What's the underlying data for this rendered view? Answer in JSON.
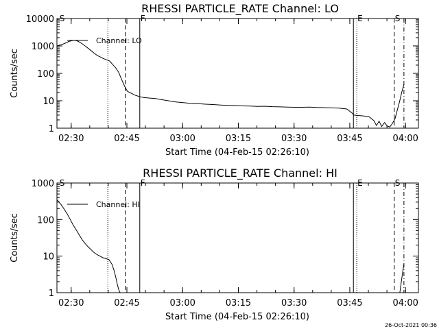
{
  "footer_timestamp": "26-Oct-2021 00:36",
  "chart_data": [
    {
      "type": "line",
      "title": "RHESSI PARTICLE_RATE Channel: LO",
      "xlabel": "Start Time (04-Feb-15 02:26:10)",
      "ylabel": "Counts/sec",
      "yscale": "log",
      "ylim": [
        1,
        10000
      ],
      "yticks": [
        1,
        10,
        100,
        1000,
        10000
      ],
      "ytick_labels": [
        "1",
        "10",
        "100",
        "1000",
        "10000"
      ],
      "xunit": "minutes since 02:26:10",
      "xlim": [
        0,
        97.3
      ],
      "xticks": [
        3.83,
        18.83,
        33.83,
        48.83,
        63.83,
        78.83,
        93.83
      ],
      "xtick_labels": [
        "02:30",
        "02:45",
        "03:00",
        "03:15",
        "03:30",
        "03:45",
        "04:00"
      ],
      "grid": false,
      "legend": {
        "label": "Channel: LO",
        "placement": "top-left"
      },
      "markers": [
        {
          "label": "S",
          "x": 0.5,
          "linestyle": "none"
        },
        {
          "label": "",
          "x": 13.7,
          "linestyle": "dotted"
        },
        {
          "label": "",
          "x": 18.4,
          "linestyle": "dashed"
        },
        {
          "label": "F",
          "x": 22.3,
          "linestyle": "solid"
        },
        {
          "label": "",
          "x": 79.8,
          "linestyle": "solid"
        },
        {
          "label": "E",
          "x": 80.7,
          "linestyle": "dotted"
        },
        {
          "label": "S",
          "x": 90.8,
          "linestyle": "dashed"
        },
        {
          "label": "",
          "x": 93.4,
          "linestyle": "dashdot"
        }
      ],
      "series": [
        {
          "x": [
            0,
            0.5,
            1.5,
            2.5,
            3.2,
            4.0,
            4.8,
            5.6,
            6.2,
            7.0,
            7.8,
            8.6,
            9.4,
            10.2,
            11.0,
            11.8,
            12.6,
            13.4,
            14.2,
            15.0,
            15.8,
            16.6,
            17.2,
            17.8,
            18.4,
            19.0,
            19.6,
            20.3,
            21.0,
            21.7,
            22.3,
            23.5,
            25,
            26.5,
            28,
            30,
            32,
            34,
            36,
            38,
            40,
            42,
            44,
            46,
            48,
            50,
            52,
            54,
            56,
            58,
            60,
            62,
            64,
            66,
            68,
            70,
            72,
            74,
            76,
            78,
            79.5,
            79.9,
            81,
            82.5,
            84,
            85.3,
            86.0,
            86.7,
            87.4,
            88.2,
            88.9,
            89.6,
            90.3,
            91.0,
            91.6,
            92.2,
            92.8,
            93.4
          ],
          "y": [
            1000,
            1050,
            1150,
            1300,
            1450,
            1550,
            1600,
            1500,
            1350,
            1150,
            950,
            780,
            640,
            520,
            440,
            390,
            340,
            310,
            280,
            210,
            160,
            110,
            70,
            45,
            30,
            22,
            20,
            18,
            16,
            15,
            14,
            13,
            12.5,
            12,
            11,
            10,
            9,
            8.5,
            8,
            7.8,
            7.5,
            7.3,
            7,
            6.8,
            6.7,
            6.5,
            6.4,
            6.2,
            6.3,
            6.1,
            6.0,
            5.9,
            5.8,
            5.8,
            5.9,
            5.7,
            5.6,
            5.5,
            5.4,
            5.0,
            3.5,
            3.0,
            2.9,
            2.8,
            2.6,
            1.9,
            1.25,
            1.8,
            1.15,
            1.6,
            1.2,
            1.1,
            1.5,
            2.2,
            4.5,
            9,
            20,
            40
          ]
        }
      ]
    },
    {
      "type": "line",
      "title": "RHESSI PARTICLE_RATE Channel: HI",
      "xlabel": "Start Time (04-Feb-15 02:26:10)",
      "ylabel": "Counts/sec",
      "yscale": "log",
      "ylim": [
        1,
        1000
      ],
      "yticks": [
        1,
        10,
        100,
        1000
      ],
      "ytick_labels": [
        "1",
        "10",
        "100",
        "1000"
      ],
      "xunit": "minutes since 02:26:10",
      "xlim": [
        0,
        97.3
      ],
      "xticks": [
        3.83,
        18.83,
        33.83,
        48.83,
        63.83,
        78.83,
        93.83
      ],
      "xtick_labels": [
        "02:30",
        "02:45",
        "03:00",
        "03:15",
        "03:30",
        "03:45",
        "04:00"
      ],
      "grid": false,
      "legend": {
        "label": "Channel: HI",
        "placement": "top-left"
      },
      "markers": [
        {
          "label": "S",
          "x": 0.5,
          "linestyle": "none"
        },
        {
          "label": "",
          "x": 13.7,
          "linestyle": "dotted"
        },
        {
          "label": "",
          "x": 18.4,
          "linestyle": "dashed"
        },
        {
          "label": "F",
          "x": 22.3,
          "linestyle": "solid"
        },
        {
          "label": "",
          "x": 79.8,
          "linestyle": "solid"
        },
        {
          "label": "E",
          "x": 80.7,
          "linestyle": "dotted"
        },
        {
          "label": "S",
          "x": 90.8,
          "linestyle": "dashed"
        },
        {
          "label": "",
          "x": 93.4,
          "linestyle": "dashdot"
        }
      ],
      "series": [
        {
          "x": [
            0,
            0.6,
            1.2,
            2.0,
            2.8,
            3.6,
            4.4,
            5.2,
            6.0,
            6.8,
            7.6,
            8.4,
            9.2,
            10.0,
            10.8,
            11.6,
            12.4,
            13.2,
            14.0,
            14.8,
            15.4,
            15.9,
            16.3,
            16.7,
            17.0
          ],
          "y": [
            350,
            300,
            250,
            190,
            140,
            100,
            70,
            52,
            38,
            28,
            22,
            18,
            15,
            12.5,
            11,
            10,
            9,
            8.5,
            8,
            6,
            4,
            2.5,
            1.6,
            1.15,
            1.0
          ]
        },
        {
          "x": [
            92.3,
            92.7,
            93.1,
            93.4
          ],
          "y": [
            1.0,
            2.0,
            4.0,
            6.0
          ]
        }
      ]
    }
  ]
}
